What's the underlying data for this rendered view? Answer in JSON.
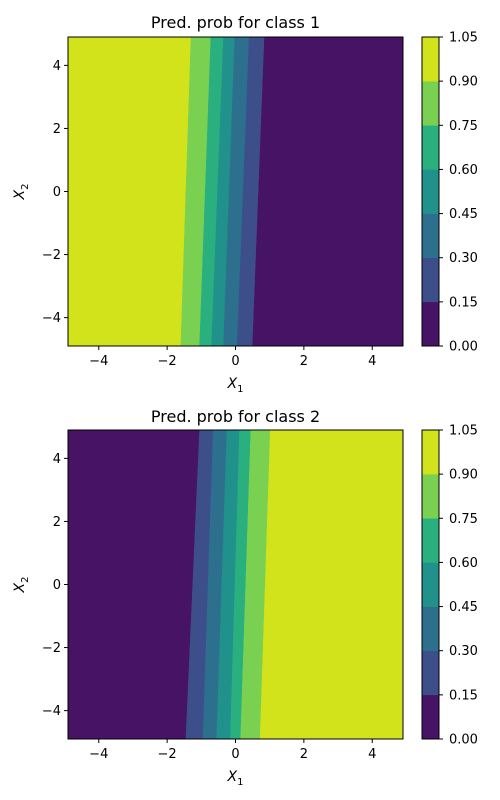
{
  "chart_data": [
    {
      "type": "contourf",
      "title": "Pred. prob for class 1",
      "xlabel": "X",
      "xlabel_sub": "1",
      "ylabel": "X",
      "ylabel_sub": "2",
      "xlim": [
        -4.9,
        4.9
      ],
      "ylim": [
        -4.9,
        4.9
      ],
      "xticks": [
        -4,
        -2,
        0,
        2,
        4
      ],
      "yticks": [
        -4,
        -2,
        0,
        2,
        4
      ],
      "colorbar": {
        "levels": [
          0.0,
          0.15,
          0.3,
          0.45,
          0.6,
          0.75,
          0.9,
          1.05
        ],
        "labels": [
          "0.00",
          "0.15",
          "0.30",
          "0.45",
          "0.60",
          "0.75",
          "0.90",
          "1.05"
        ],
        "colors": [
          "#471365",
          "#3c4f8a",
          "#2d708e",
          "#21918c",
          "#2ab07f",
          "#7ad151",
          "#d2e21b"
        ]
      },
      "contour_boundaries": [
        {
          "level": 0.9,
          "x_at_ymin": -1.6,
          "x_at_ymax": -1.3
        },
        {
          "level": 0.75,
          "x_at_ymin": -1.05,
          "x_at_ymax": -0.72
        },
        {
          "level": 0.6,
          "x_at_ymin": -0.7,
          "x_at_ymax": -0.35
        },
        {
          "level": 0.45,
          "x_at_ymin": -0.35,
          "x_at_ymax": -0.02
        },
        {
          "level": 0.3,
          "x_at_ymin": 0.05,
          "x_at_ymax": 0.4
        },
        {
          "level": 0.15,
          "x_at_ymin": 0.5,
          "x_at_ymax": 0.85
        }
      ]
    },
    {
      "type": "contourf",
      "title": "Pred. prob for class 2",
      "xlabel": "X",
      "xlabel_sub": "1",
      "ylabel": "X",
      "ylabel_sub": "2",
      "xlim": [
        -4.9,
        4.9
      ],
      "ylim": [
        -4.9,
        4.9
      ],
      "xticks": [
        -4,
        -2,
        0,
        2,
        4
      ],
      "yticks": [
        -4,
        -2,
        0,
        2,
        4
      ],
      "colorbar": {
        "levels": [
          0.0,
          0.15,
          0.3,
          0.45,
          0.6,
          0.75,
          0.9,
          1.05
        ],
        "labels": [
          "0.00",
          "0.15",
          "0.30",
          "0.45",
          "0.60",
          "0.75",
          "0.90",
          "1.05"
        ],
        "colors": [
          "#471365",
          "#3c4f8a",
          "#2d708e",
          "#21918c",
          "#2ab07f",
          "#7ad151",
          "#d2e21b"
        ]
      },
      "contour_boundaries": [
        {
          "level": 0.15,
          "x_at_ymin": -1.45,
          "x_at_ymax": -1.05
        },
        {
          "level": 0.3,
          "x_at_ymin": -0.95,
          "x_at_ymax": -0.65
        },
        {
          "level": 0.45,
          "x_at_ymin": -0.55,
          "x_at_ymax": -0.25
        },
        {
          "level": 0.6,
          "x_at_ymin": -0.15,
          "x_at_ymax": 0.12
        },
        {
          "level": 0.75,
          "x_at_ymin": 0.15,
          "x_at_ymax": 0.45
        },
        {
          "level": 0.9,
          "x_at_ymin": 0.72,
          "x_at_ymax": 1.02
        }
      ]
    }
  ]
}
